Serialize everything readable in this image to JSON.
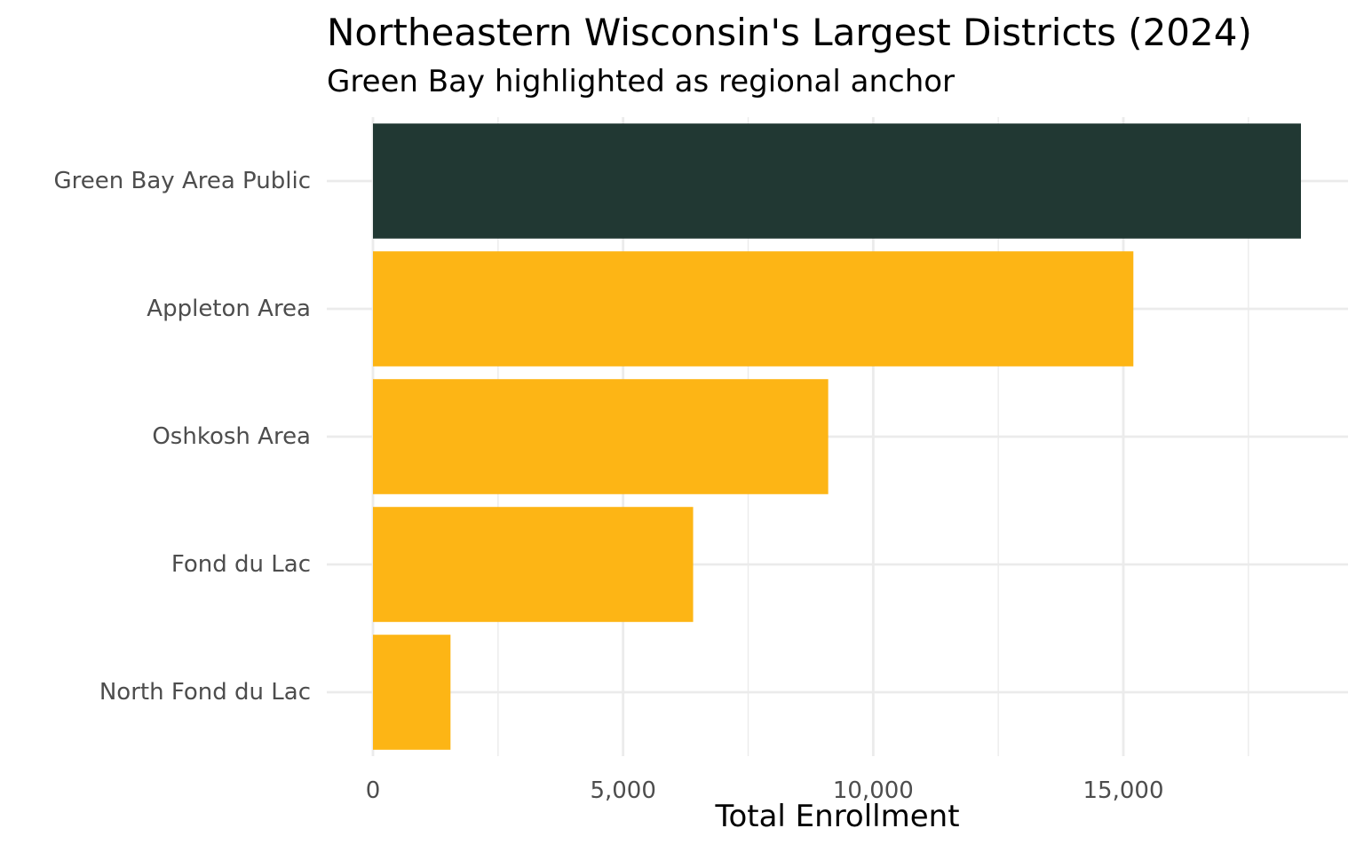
{
  "chart_data": {
    "type": "bar",
    "orientation": "horizontal",
    "title": "Northeastern Wisconsin's Largest Districts (2024)",
    "subtitle": "Green Bay highlighted as regional anchor",
    "xlabel": "Total Enrollment",
    "ylabel": "",
    "categories": [
      "Green Bay Area Public",
      "Appleton Area",
      "Oshkosh Area",
      "Fond du Lac",
      "North Fond du Lac"
    ],
    "values": [
      18550,
      15200,
      9100,
      6400,
      1550
    ],
    "highlight": [
      true,
      false,
      false,
      false,
      false
    ],
    "colors": {
      "highlight": "#213833",
      "default": "#FDB515",
      "grid": "#ebebeb"
    },
    "xlim": [
      0,
      19500
    ],
    "x_ticks": [
      {
        "value": 0,
        "label": "0"
      },
      {
        "value": 5000,
        "label": "5,000"
      },
      {
        "value": 10000,
        "label": "10,000"
      },
      {
        "value": 15000,
        "label": "15,000"
      }
    ],
    "x_minor_ticks": [
      2500,
      7500,
      12500,
      17500
    ],
    "grid": true,
    "legend": "none"
  }
}
